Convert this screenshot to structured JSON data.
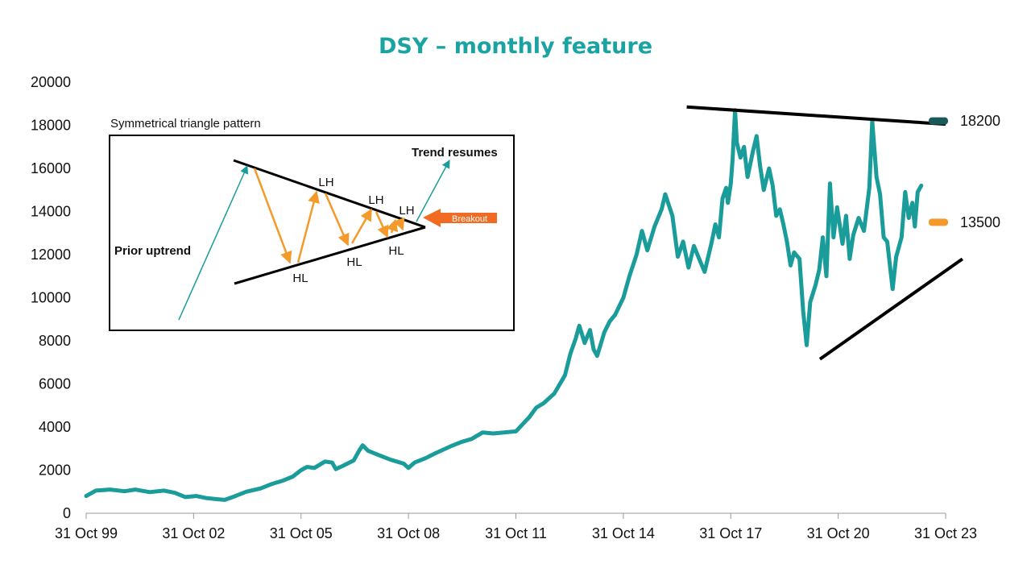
{
  "colors": {
    "price": "#1a9c9a",
    "title": "#1aa3a3",
    "orange": "#f39a2b",
    "breakout": "#f26b22",
    "dark_teal": "#1a5a5a",
    "black": "#000000"
  },
  "chart_data": {
    "type": "line",
    "title": "DSY – monthly feature",
    "xlabel": "",
    "ylabel": "",
    "x_ticks": [
      "31 Oct 99",
      "31 Oct 02",
      "31 Oct 05",
      "31 Oct 08",
      "31 Oct 11",
      "31 Oct 14",
      "31 Oct 17",
      "31 Oct 20",
      "31 Oct 23"
    ],
    "y_ticks": [
      "0",
      "2000",
      "4000",
      "6000",
      "8000",
      "10000",
      "12000",
      "14000",
      "16000",
      "18000",
      "20000"
    ],
    "ylim": [
      0,
      20000
    ],
    "xlim": [
      1999.83,
      2023.83
    ],
    "grid": false,
    "series": [
      {
        "name": "",
        "points": [
          [
            1999.83,
            800
          ],
          [
            2000.1,
            1050
          ],
          [
            2000.5,
            1100
          ],
          [
            2000.9,
            1020
          ],
          [
            2001.2,
            1100
          ],
          [
            2001.6,
            980
          ],
          [
            2002.0,
            1050
          ],
          [
            2002.3,
            950
          ],
          [
            2002.6,
            750
          ],
          [
            2002.9,
            800
          ],
          [
            2003.2,
            700
          ],
          [
            2003.5,
            650
          ],
          [
            2003.7,
            620
          ],
          [
            2004.0,
            800
          ],
          [
            2004.3,
            1000
          ],
          [
            2004.7,
            1150
          ],
          [
            2005.0,
            1350
          ],
          [
            2005.3,
            1500
          ],
          [
            2005.6,
            1700
          ],
          [
            2005.83,
            2000
          ],
          [
            2006.0,
            2150
          ],
          [
            2006.2,
            2100
          ],
          [
            2006.5,
            2400
          ],
          [
            2006.7,
            2350
          ],
          [
            2006.8,
            2050
          ],
          [
            2007.0,
            2200
          ],
          [
            2007.3,
            2450
          ],
          [
            2007.45,
            2900
          ],
          [
            2007.55,
            3150
          ],
          [
            2007.7,
            2900
          ],
          [
            2008.0,
            2700
          ],
          [
            2008.3,
            2500
          ],
          [
            2008.5,
            2400
          ],
          [
            2008.7,
            2300
          ],
          [
            2008.83,
            2100
          ],
          [
            2009.0,
            2350
          ],
          [
            2009.3,
            2550
          ],
          [
            2009.6,
            2800
          ],
          [
            2010.0,
            3100
          ],
          [
            2010.3,
            3300
          ],
          [
            2010.6,
            3450
          ],
          [
            2010.9,
            3750
          ],
          [
            2011.2,
            3700
          ],
          [
            2011.5,
            3750
          ],
          [
            2011.83,
            3800
          ],
          [
            2012.0,
            4100
          ],
          [
            2012.2,
            4450
          ],
          [
            2012.4,
            4900
          ],
          [
            2012.6,
            5100
          ],
          [
            2012.9,
            5550
          ],
          [
            2013.2,
            6400
          ],
          [
            2013.35,
            7400
          ],
          [
            2013.5,
            8100
          ],
          [
            2013.6,
            8700
          ],
          [
            2013.75,
            7900
          ],
          [
            2013.9,
            8500
          ],
          [
            2014.0,
            7600
          ],
          [
            2014.1,
            7300
          ],
          [
            2014.3,
            8400
          ],
          [
            2014.45,
            8900
          ],
          [
            2014.6,
            9200
          ],
          [
            2014.83,
            10000
          ],
          [
            2015.0,
            11000
          ],
          [
            2015.2,
            12000
          ],
          [
            2015.35,
            13100
          ],
          [
            2015.5,
            12200
          ],
          [
            2015.7,
            13300
          ],
          [
            2015.9,
            14100
          ],
          [
            2016.0,
            14800
          ],
          [
            2016.2,
            13800
          ],
          [
            2016.35,
            11900
          ],
          [
            2016.5,
            12600
          ],
          [
            2016.65,
            11400
          ],
          [
            2016.8,
            12400
          ],
          [
            2016.95,
            11800
          ],
          [
            2017.1,
            11200
          ],
          [
            2017.3,
            12600
          ],
          [
            2017.4,
            13400
          ],
          [
            2017.5,
            12800
          ],
          [
            2017.6,
            14600
          ],
          [
            2017.7,
            15100
          ],
          [
            2017.75,
            14400
          ],
          [
            2017.83,
            15300
          ],
          [
            2017.88,
            16400
          ],
          [
            2017.95,
            18700
          ],
          [
            2018.0,
            17200
          ],
          [
            2018.1,
            16500
          ],
          [
            2018.2,
            17000
          ],
          [
            2018.3,
            15600
          ],
          [
            2018.45,
            16800
          ],
          [
            2018.55,
            17500
          ],
          [
            2018.65,
            16100
          ],
          [
            2018.75,
            15000
          ],
          [
            2018.9,
            16000
          ],
          [
            2019.0,
            15200
          ],
          [
            2019.1,
            13800
          ],
          [
            2019.2,
            14100
          ],
          [
            2019.3,
            13400
          ],
          [
            2019.4,
            12600
          ],
          [
            2019.5,
            11500
          ],
          [
            2019.6,
            12100
          ],
          [
            2019.75,
            11800
          ],
          [
            2019.85,
            9400
          ],
          [
            2019.95,
            7800
          ],
          [
            2020.05,
            9800
          ],
          [
            2020.2,
            10600
          ],
          [
            2020.3,
            11300
          ],
          [
            2020.4,
            12800
          ],
          [
            2020.5,
            11000
          ],
          [
            2020.6,
            15300
          ],
          [
            2020.7,
            12800
          ],
          [
            2020.8,
            14200
          ],
          [
            2020.95,
            12500
          ],
          [
            2021.05,
            13800
          ],
          [
            2021.15,
            11800
          ],
          [
            2021.25,
            12900
          ],
          [
            2021.4,
            13700
          ],
          [
            2021.55,
            13100
          ],
          [
            2021.7,
            15100
          ],
          [
            2021.78,
            18200
          ],
          [
            2021.9,
            15600
          ],
          [
            2022.0,
            14800
          ],
          [
            2022.1,
            12800
          ],
          [
            2022.2,
            12600
          ],
          [
            2022.35,
            10400
          ],
          [
            2022.45,
            11900
          ],
          [
            2022.6,
            12800
          ],
          [
            2022.7,
            14900
          ],
          [
            2022.8,
            13700
          ],
          [
            2022.9,
            14400
          ],
          [
            2022.97,
            13300
          ],
          [
            2023.05,
            14900
          ],
          [
            2023.15,
            15200
          ]
        ]
      }
    ],
    "trendlines": {
      "upper": [
        [
          2016.6,
          18850
        ],
        [
          2023.83,
          18050
        ]
      ],
      "lower": [
        [
          2020.32,
          7150
        ],
        [
          2024.3,
          11800
        ]
      ]
    },
    "levels": [
      {
        "label": "18200",
        "value": 18200,
        "color": "dark_teal"
      },
      {
        "label": "13500",
        "value": 13500,
        "color": "orange"
      }
    ],
    "inset": {
      "heading": "Symmetrical triangle pattern",
      "prior_uptrend": "Prior uptrend",
      "trend_resumes": "Trend resumes",
      "breakout": "Breakout",
      "labels": [
        {
          "text": "LH",
          "kind": "high"
        },
        {
          "text": "LH",
          "kind": "high"
        },
        {
          "text": "LH",
          "kind": "high"
        },
        {
          "text": "HL",
          "kind": "low"
        },
        {
          "text": "HL",
          "kind": "low"
        },
        {
          "text": "HL",
          "kind": "low"
        }
      ]
    }
  }
}
